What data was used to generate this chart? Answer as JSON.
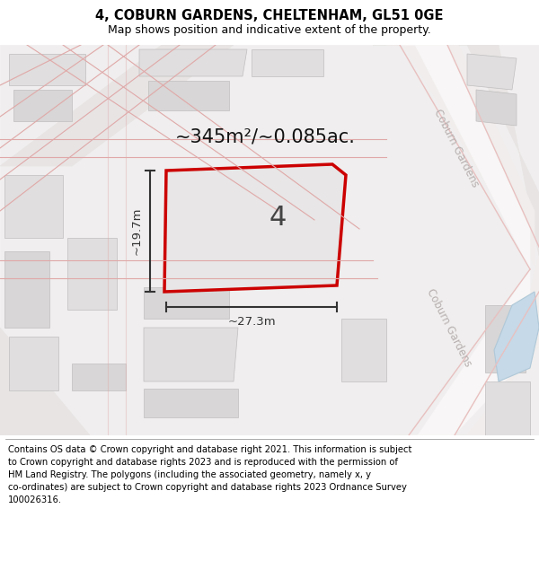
{
  "title": "4, COBURN GARDENS, CHELTENHAM, GL51 0GE",
  "subtitle": "Map shows position and indicative extent of the property.",
  "footer": "Contains OS data © Crown copyright and database right 2021. This information is subject\nto Crown copyright and database rights 2023 and is reproduced with the permission of\nHM Land Registry. The polygons (including the associated geometry, namely x, y\nco-ordinates) are subject to Crown copyright and database rights 2023 Ordnance Survey\n100026316.",
  "area_label": "~345m²/~0.085ac.",
  "plot_label": "4",
  "width_label": "~27.3m",
  "height_label": "~19.7m",
  "plot_outline_color": "#cc0000",
  "dim_color": "#333333",
  "road_label_color": "#b8b0b0",
  "title_fontsize": 10.5,
  "subtitle_fontsize": 9,
  "footer_fontsize": 7.2,
  "area_fontsize": 15,
  "plot_num_fontsize": 22
}
